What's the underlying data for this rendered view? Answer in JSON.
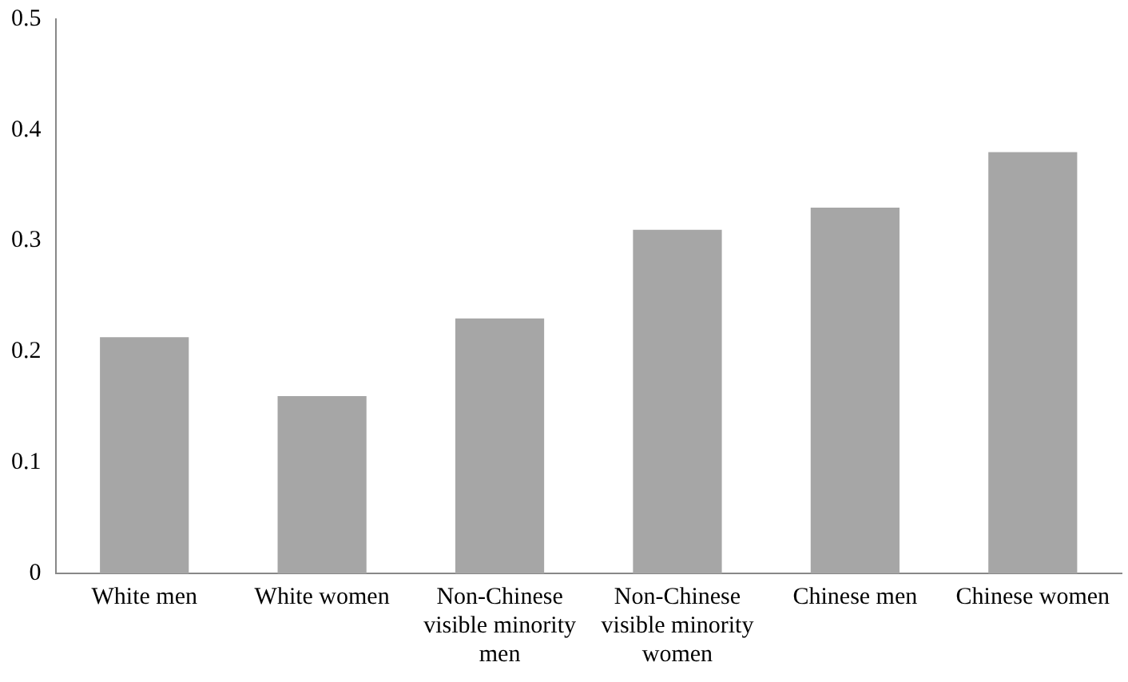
{
  "chart_data": {
    "type": "bar",
    "categories": [
      "White men",
      "White women",
      "Non-Chinese visible minority men",
      "Non-Chinese visible minority women",
      "Chinese men",
      "Chinese women"
    ],
    "values": [
      0.213,
      0.16,
      0.23,
      0.31,
      0.33,
      0.38
    ],
    "color": "#a6a6a6",
    "ylim": [
      0,
      0.5
    ],
    "yticks": [
      0,
      0.1,
      0.2,
      0.3,
      0.4,
      0.5
    ],
    "grid": false,
    "legend": false
  }
}
